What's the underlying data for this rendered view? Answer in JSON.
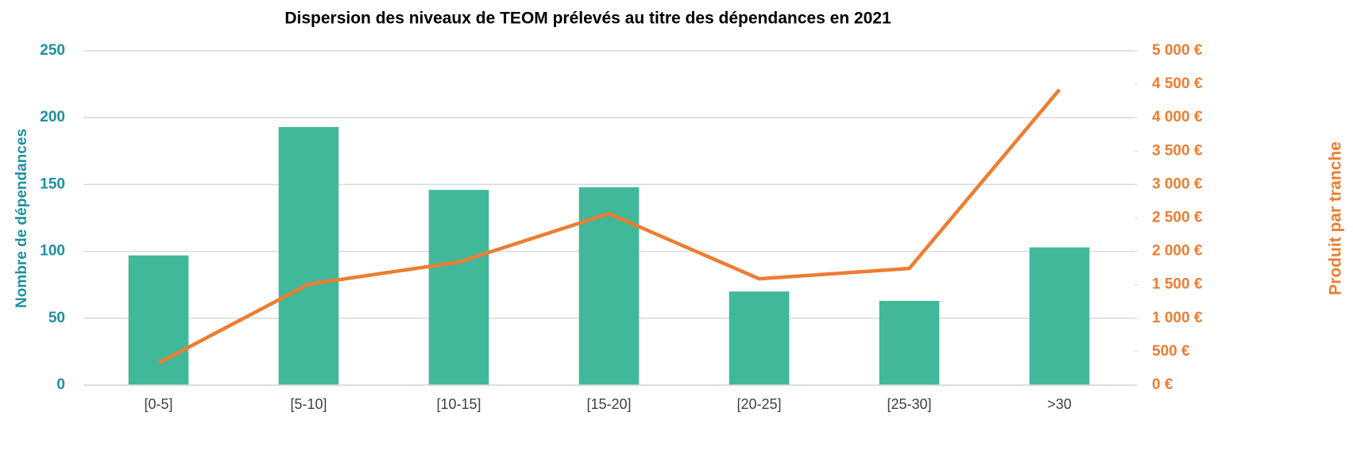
{
  "chart_data": {
    "type": "bar_line",
    "title": "Dispersion des niveaux de TEOM prélevés au titre des dépendances en 2021",
    "y_label": "Nombre de dépendances",
    "y2_label": "Produit par tranche",
    "categories": [
      "[0-5]",
      "[5-10]",
      "[10-15]",
      "[15-20]",
      "[20-25]",
      "[25-30]",
      ">30"
    ],
    "series": [
      {
        "name": "Nombre de dépendances",
        "type": "bar",
        "color": "#41b89a",
        "values": [
          97,
          193,
          146,
          148,
          70,
          63,
          103
        ]
      },
      {
        "name": "Produit par tranche",
        "type": "line",
        "axis": "y2",
        "color": "#ed7d31",
        "values": [
          330,
          1510,
          1840,
          2565,
          1590,
          1745,
          4420
        ]
      }
    ],
    "ylim": [
      0,
      250
    ],
    "yticks": [
      0,
      50,
      100,
      150,
      200,
      250
    ],
    "y2lim": [
      0,
      5000
    ],
    "y2ticks": [
      {
        "value": 0,
        "label": "0 €"
      },
      {
        "value": 500,
        "label": "500 €"
      },
      {
        "value": 1000,
        "label": "1 000 €"
      },
      {
        "value": 1500,
        "label": "1 500 €"
      },
      {
        "value": 2000,
        "label": "2 000 €"
      },
      {
        "value": 2500,
        "label": "2 500 €"
      },
      {
        "value": 3000,
        "label": "3 000 €"
      },
      {
        "value": 3500,
        "label": "3 500 €"
      },
      {
        "value": 4000,
        "label": "4 000 €"
      },
      {
        "value": 4500,
        "label": "4 500 €"
      },
      {
        "value": 5000,
        "label": "5 000 €"
      }
    ],
    "grid": true,
    "y_color": "#1f8fa0",
    "y2_color": "#ed7d31"
  }
}
